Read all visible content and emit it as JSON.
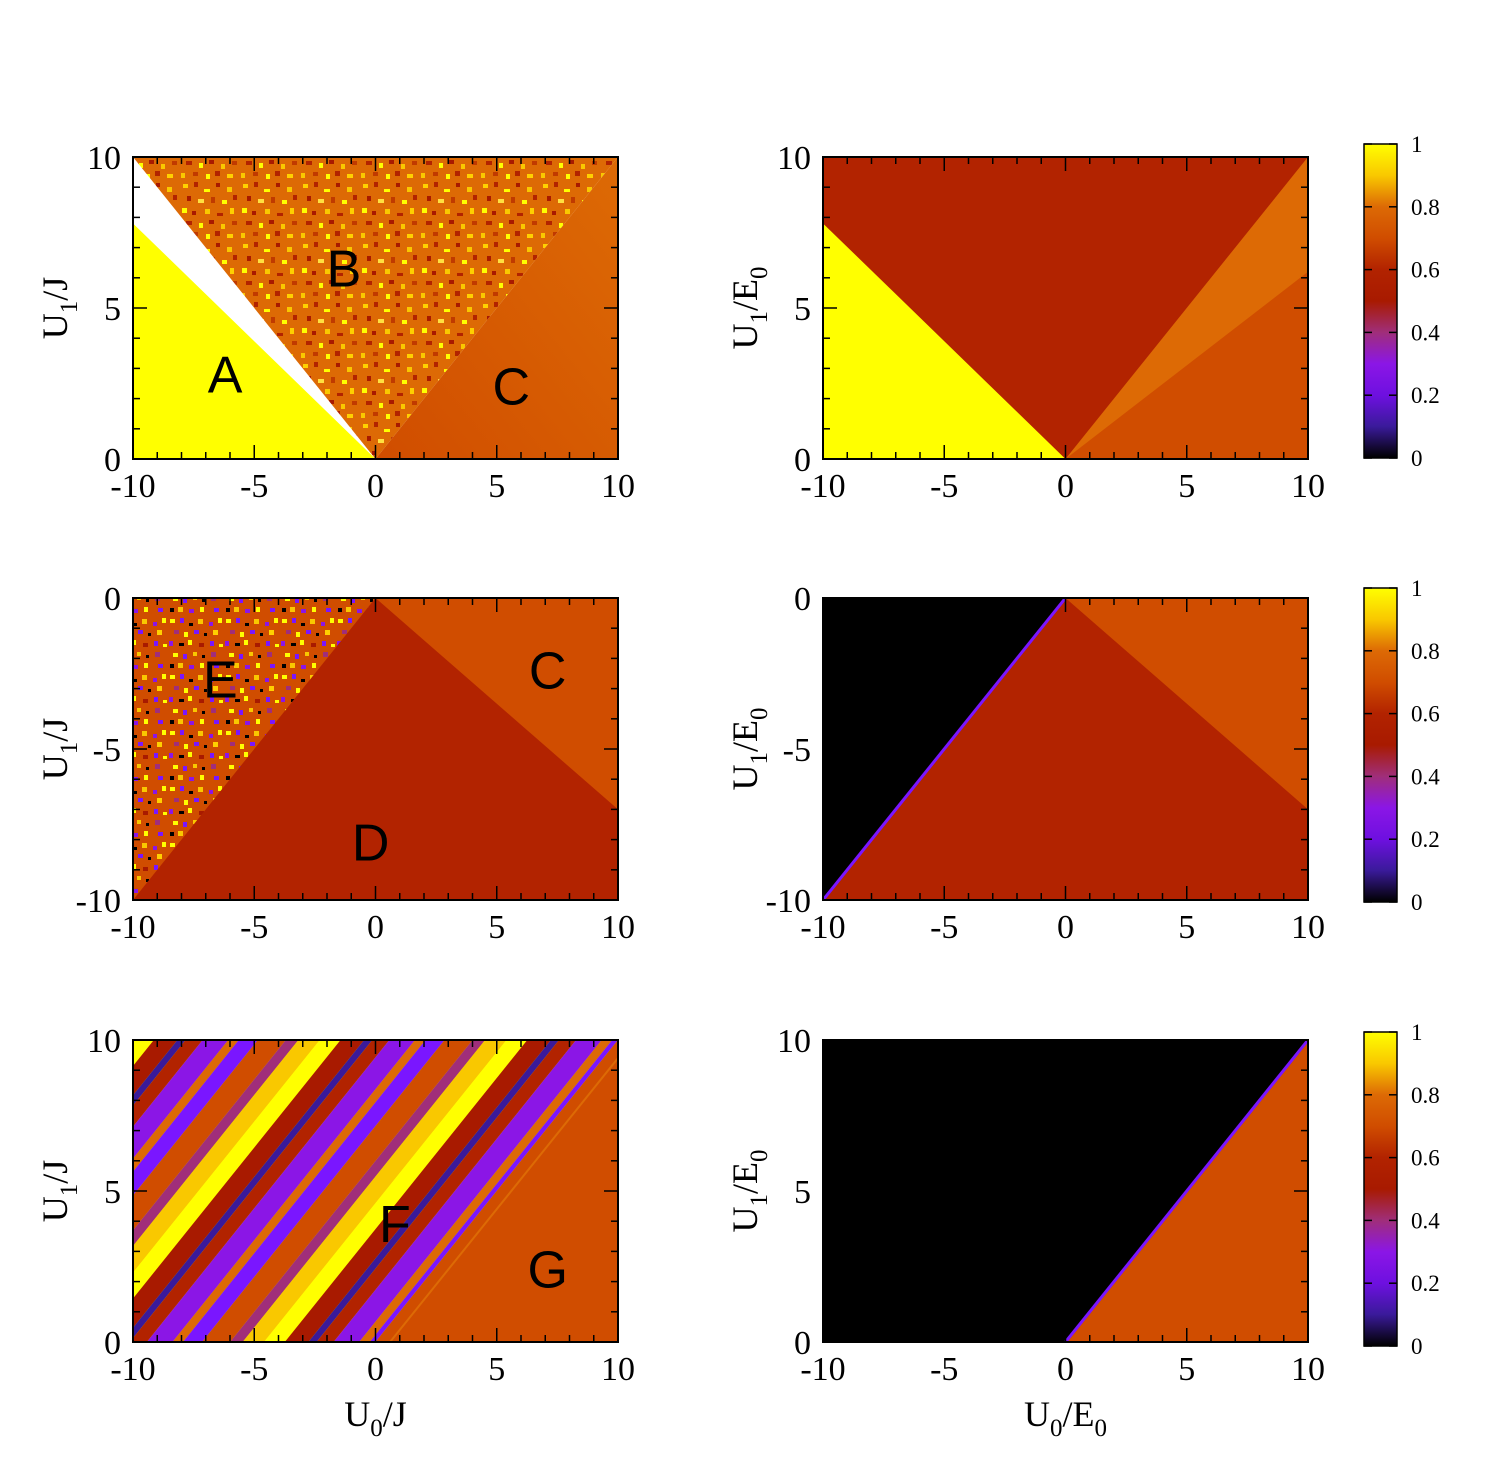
{
  "colors": {
    "black": "#000000",
    "yellow": "#ffff00",
    "gold": "#f9c800",
    "orange": "#d04d00",
    "orange_light": "#dd6a05",
    "rust": "#b22300",
    "red": "#a81a00",
    "magenta": "#a02e7a",
    "purple": "#8b16e6",
    "violet": "#7a16ff",
    "indigo": "#3a1a9a"
  },
  "chart_data": [
    {
      "type": "heatmap",
      "panel": "top-left",
      "title": "",
      "xlabel": "U0/J",
      "ylabel": "U1/J",
      "xlim": [
        -10,
        10
      ],
      "ylim": [
        0,
        10
      ],
      "xticks": [
        -10,
        -5,
        0,
        5,
        10
      ],
      "yticks": [
        0,
        5,
        10
      ],
      "xtick_labels": [
        "-10",
        "-5",
        "0",
        "5",
        "10"
      ],
      "ytick_labels": [
        "0",
        "5",
        "10"
      ],
      "xlabel_shown": false,
      "regions": [
        {
          "label": "A",
          "value": 1.0,
          "label_at": [
            -6.2,
            2.8
          ],
          "label_color": "#000000"
        },
        {
          "label": "B",
          "value": 0.75,
          "label_at": [
            -1.3,
            6.3
          ],
          "label_color": "#ffffff",
          "texture": "noisy"
        },
        {
          "label": "C",
          "value": 0.7,
          "label_at": [
            5.6,
            2.4
          ],
          "label_color": "#ffffff"
        }
      ]
    },
    {
      "type": "heatmap",
      "panel": "top-right",
      "title": "",
      "xlabel": "U0/E0",
      "ylabel": "U1/E0",
      "xlim": [
        -10,
        10
      ],
      "ylim": [
        0,
        10
      ],
      "xticks": [
        -10,
        -5,
        0,
        5,
        10
      ],
      "yticks": [
        0,
        5,
        10
      ],
      "xtick_labels": [
        "-10",
        "-5",
        "0",
        "5",
        "10"
      ],
      "ytick_labels": [
        "0",
        "5",
        "10"
      ],
      "xlabel_shown": false,
      "regions": [
        {
          "value": 1.0,
          "description": "lower-left triangle"
        },
        {
          "value": 0.6,
          "description": "central wedge"
        },
        {
          "value": 0.72,
          "description": "lower-right triangle"
        }
      ]
    },
    {
      "type": "heatmap",
      "panel": "middle-left",
      "title": "",
      "xlabel": "U0/J",
      "ylabel": "U1/J",
      "xlim": [
        -10,
        10
      ],
      "ylim": [
        -10,
        0
      ],
      "xticks": [
        -10,
        -5,
        0,
        5,
        10
      ],
      "yticks": [
        -10,
        -5,
        0
      ],
      "xtick_labels": [
        "-10",
        "-5",
        "0",
        "5",
        "10"
      ],
      "ytick_labels": [
        "-10",
        "-5",
        "0"
      ],
      "xlabel_shown": false,
      "regions": [
        {
          "label": "E",
          "value": 0.5,
          "label_at": [
            -6.4,
            -2.7
          ],
          "label_color": "#ffffff",
          "texture": "noisy"
        },
        {
          "label": "C",
          "value": 0.7,
          "label_at": [
            7.1,
            -2.4
          ],
          "label_color": "#ffffff"
        },
        {
          "label": "D",
          "value": 0.62,
          "label_at": [
            -0.2,
            -8.1
          ],
          "label_color": "#ffffff"
        }
      ]
    },
    {
      "type": "heatmap",
      "panel": "middle-right",
      "title": "",
      "xlabel": "U0/E0",
      "ylabel": "U1/E0",
      "xlim": [
        -10,
        10
      ],
      "ylim": [
        -10,
        0
      ],
      "xticks": [
        -10,
        -5,
        0,
        5,
        10
      ],
      "yticks": [
        -10,
        -5,
        0
      ],
      "xtick_labels": [
        "-10",
        "-5",
        "0",
        "5",
        "10"
      ],
      "ytick_labels": [
        "-10",
        "-5",
        "0"
      ],
      "xlabel_shown": false,
      "regions": [
        {
          "value": 0.0,
          "description": "upper-left triangle"
        },
        {
          "value": 0.62,
          "description": "central wedge"
        },
        {
          "value": 0.7,
          "description": "upper-right sector"
        }
      ]
    },
    {
      "type": "heatmap",
      "panel": "bottom-left",
      "title": "",
      "xlabel": "U0/J",
      "ylabel": "U1/J",
      "xlim": [
        -10,
        10
      ],
      "ylim": [
        0,
        10
      ],
      "xticks": [
        -10,
        -5,
        0,
        5,
        10
      ],
      "yticks": [
        0,
        5,
        10
      ],
      "xtick_labels": [
        "-10",
        "-5",
        "0",
        "5",
        "10"
      ],
      "ytick_labels": [
        "0",
        "5",
        "10"
      ],
      "xlabel_shown": true,
      "regions": [
        {
          "label": "F",
          "value": 0.6,
          "label_at": [
            0.8,
            3.9
          ],
          "label_color": "#000000",
          "texture": "diagonal stripes"
        },
        {
          "label": "G",
          "value": 0.72,
          "label_at": [
            7.1,
            2.4
          ],
          "label_color": "#ffffff"
        }
      ]
    },
    {
      "type": "heatmap",
      "panel": "bottom-right",
      "title": "",
      "xlabel": "U0/E0",
      "ylabel": "U1/E0",
      "xlim": [
        -10,
        10
      ],
      "ylim": [
        0,
        10
      ],
      "xticks": [
        -10,
        -5,
        0,
        5,
        10
      ],
      "yticks": [
        0,
        5,
        10
      ],
      "xtick_labels": [
        "-10",
        "-5",
        "0",
        "5",
        "10"
      ],
      "ytick_labels": [
        "0",
        "5",
        "10"
      ],
      "xlabel_shown": true,
      "regions": [
        {
          "value": 0.0,
          "description": "upper-left"
        },
        {
          "value": 0.72,
          "description": "lower-right triangle"
        }
      ]
    },
    {
      "type": "colorbar",
      "range": [
        0,
        1
      ],
      "ticks": [
        0,
        0.2,
        0.4,
        0.6,
        0.8,
        1
      ],
      "tick_labels": [
        "0",
        "0.2",
        "0.4",
        "0.6",
        "0.8",
        "1"
      ],
      "gradient": [
        {
          "value": 0.0,
          "color": "#000000"
        },
        {
          "value": 0.1,
          "color": "#3a1a9a"
        },
        {
          "value": 0.2,
          "color": "#6e10e0"
        },
        {
          "value": 0.3,
          "color": "#8b16e6"
        },
        {
          "value": 0.4,
          "color": "#a02e7a"
        },
        {
          "value": 0.5,
          "color": "#a81a00"
        },
        {
          "value": 0.6,
          "color": "#b22300"
        },
        {
          "value": 0.7,
          "color": "#d04d00"
        },
        {
          "value": 0.8,
          "color": "#dd6a05"
        },
        {
          "value": 0.9,
          "color": "#f9c800"
        },
        {
          "value": 1.0,
          "color": "#ffff00"
        }
      ]
    }
  ]
}
